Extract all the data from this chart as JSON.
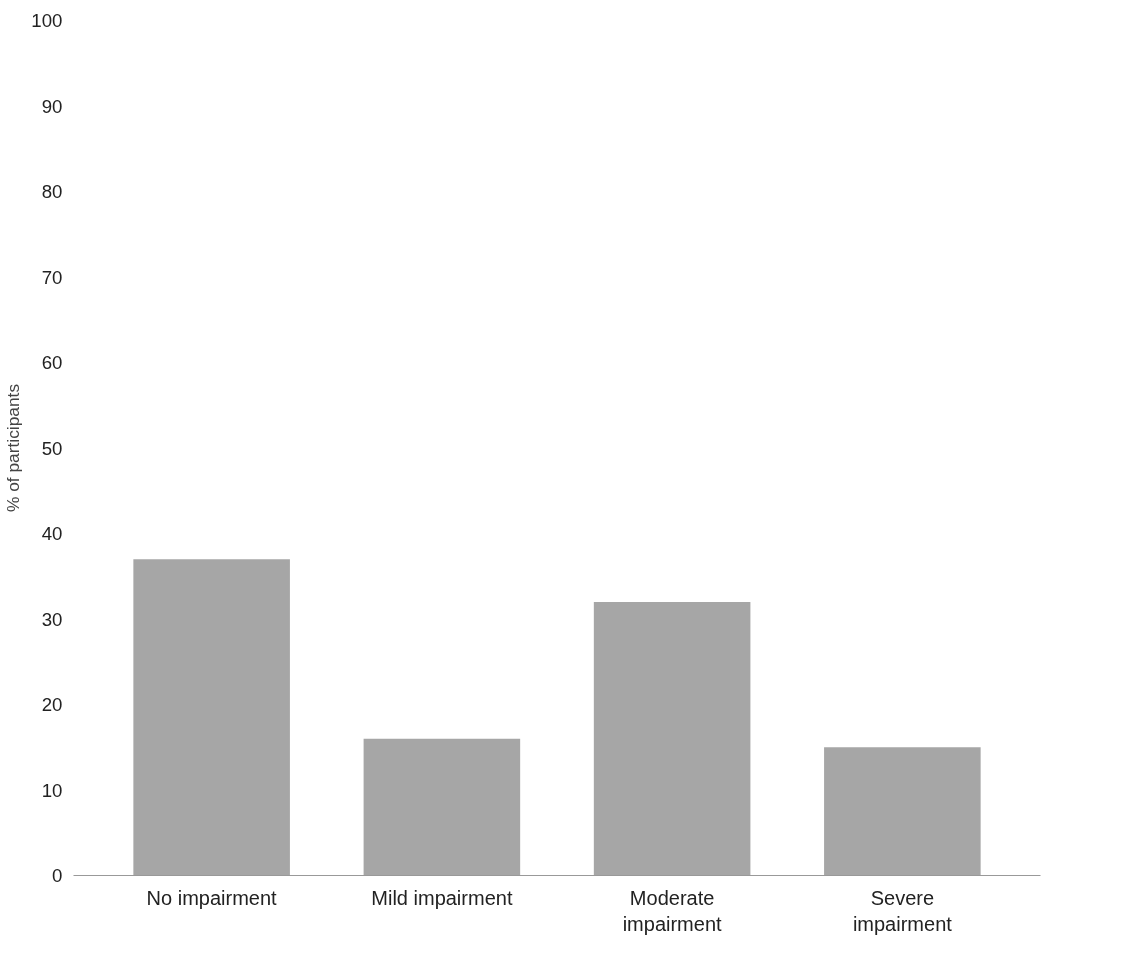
{
  "chart_data": {
    "type": "bar",
    "ylabel": "% of participants",
    "categories": [
      "No impairment",
      "Mild impairment",
      "Moderate impairment",
      "Severe impairment"
    ],
    "values": [
      37,
      16,
      32,
      15
    ],
    "color": "#a6a6a6",
    "ylim": [
      0,
      100
    ],
    "yticks": [
      0,
      10,
      20,
      30,
      40,
      50,
      60,
      70,
      80,
      90,
      100
    ],
    "grid": false
  }
}
